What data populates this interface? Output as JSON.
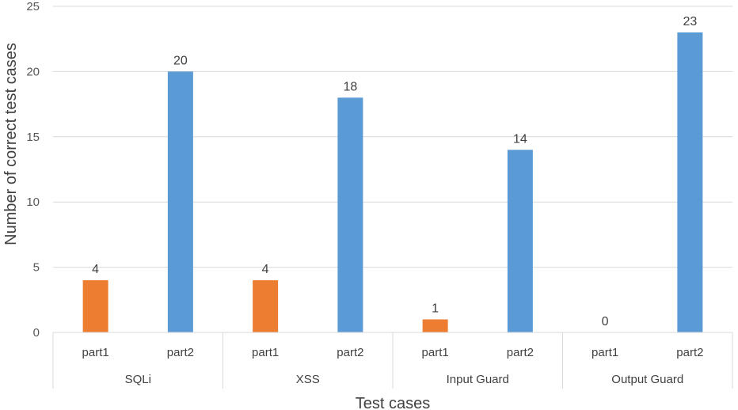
{
  "chart_data": {
    "type": "bar",
    "xlabel": "Test cases",
    "ylabel": "Number of correct test cases",
    "ylim": [
      0,
      25
    ],
    "yticks": [
      0,
      5,
      10,
      15,
      20,
      25
    ],
    "grid": true,
    "legend": "none",
    "groups": [
      "SQLi",
      "XSS",
      "Input Guard",
      "Output Guard"
    ],
    "subcategories": [
      "part1",
      "part2"
    ],
    "colors": {
      "part1": "#ED7D31",
      "part2": "#5B9BD5"
    },
    "bars": [
      {
        "group": "SQLi",
        "sub": "part1",
        "value": 4
      },
      {
        "group": "SQLi",
        "sub": "part2",
        "value": 20
      },
      {
        "group": "XSS",
        "sub": "part1",
        "value": 4
      },
      {
        "group": "XSS",
        "sub": "part2",
        "value": 18
      },
      {
        "group": "Input Guard",
        "sub": "part1",
        "value": 1
      },
      {
        "group": "Input Guard",
        "sub": "part2",
        "value": 14
      },
      {
        "group": "Output Guard",
        "sub": "part1",
        "value": 0
      },
      {
        "group": "Output Guard",
        "sub": "part2",
        "value": 23
      }
    ]
  }
}
